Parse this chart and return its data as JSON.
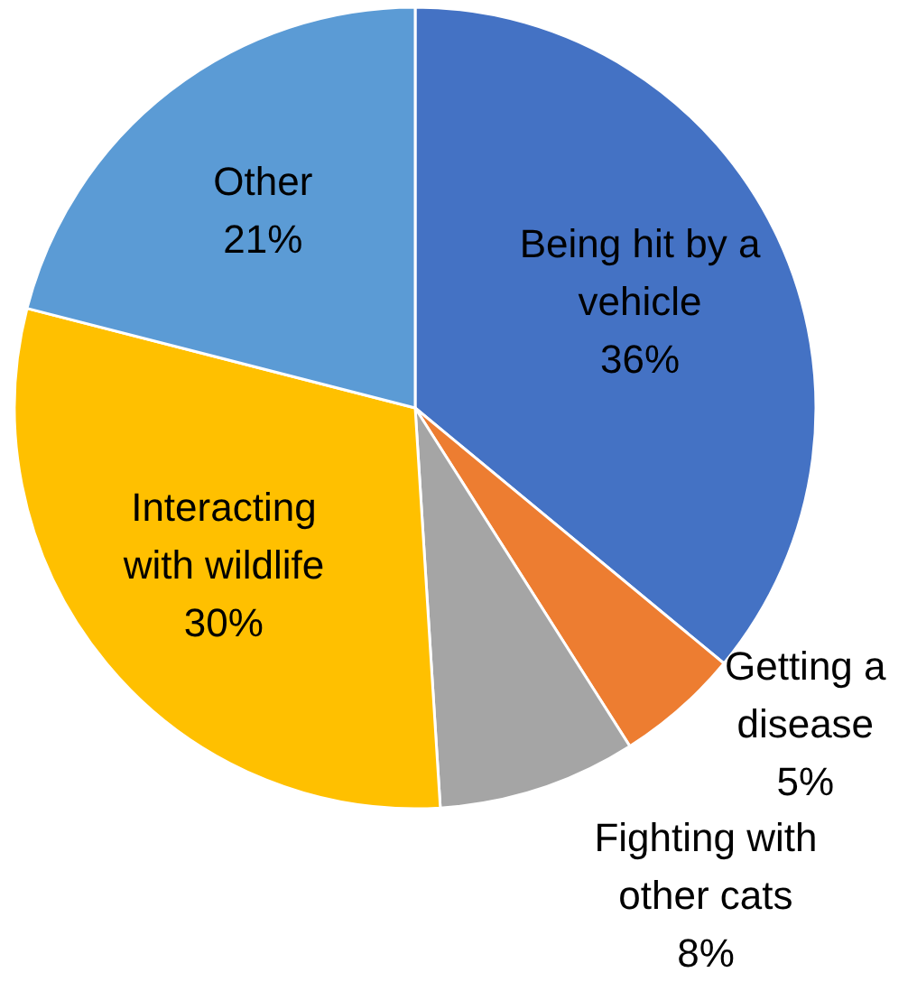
{
  "chart_data": {
    "type": "pie",
    "categories": [
      "Being hit by a vehicle",
      "Getting a disease",
      "Fighting with other cats",
      "Interacting with wildlife",
      "Other"
    ],
    "values": [
      36,
      5,
      8,
      30,
      21
    ],
    "colors": [
      "#4472c4",
      "#ed7d31",
      "#a5a5a5",
      "#ffc000",
      "#5b9bd5"
    ],
    "value_labels": [
      "36%",
      "5%",
      "8%",
      "30%",
      "21%"
    ]
  }
}
